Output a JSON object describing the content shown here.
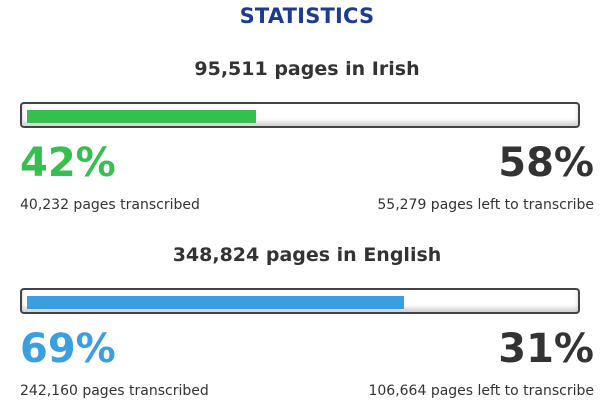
{
  "title": "STATISTICS",
  "sections": [
    {
      "heading": "95,511 pages in Irish",
      "done_percent_label": "42%",
      "left_percent_label": "58%",
      "done_fraction": 0.42,
      "done_caption": "40,232 pages transcribed",
      "left_caption": "55,279 pages left to transcribe",
      "color": "#35bf4f"
    },
    {
      "heading": "348,824 pages in English",
      "done_percent_label": "69%",
      "left_percent_label": "31%",
      "done_fraction": 0.69,
      "done_caption": "242,160 pages transcribed",
      "left_caption": "106,664 pages left to transcribe",
      "color": "#3a9fe0"
    }
  ]
}
